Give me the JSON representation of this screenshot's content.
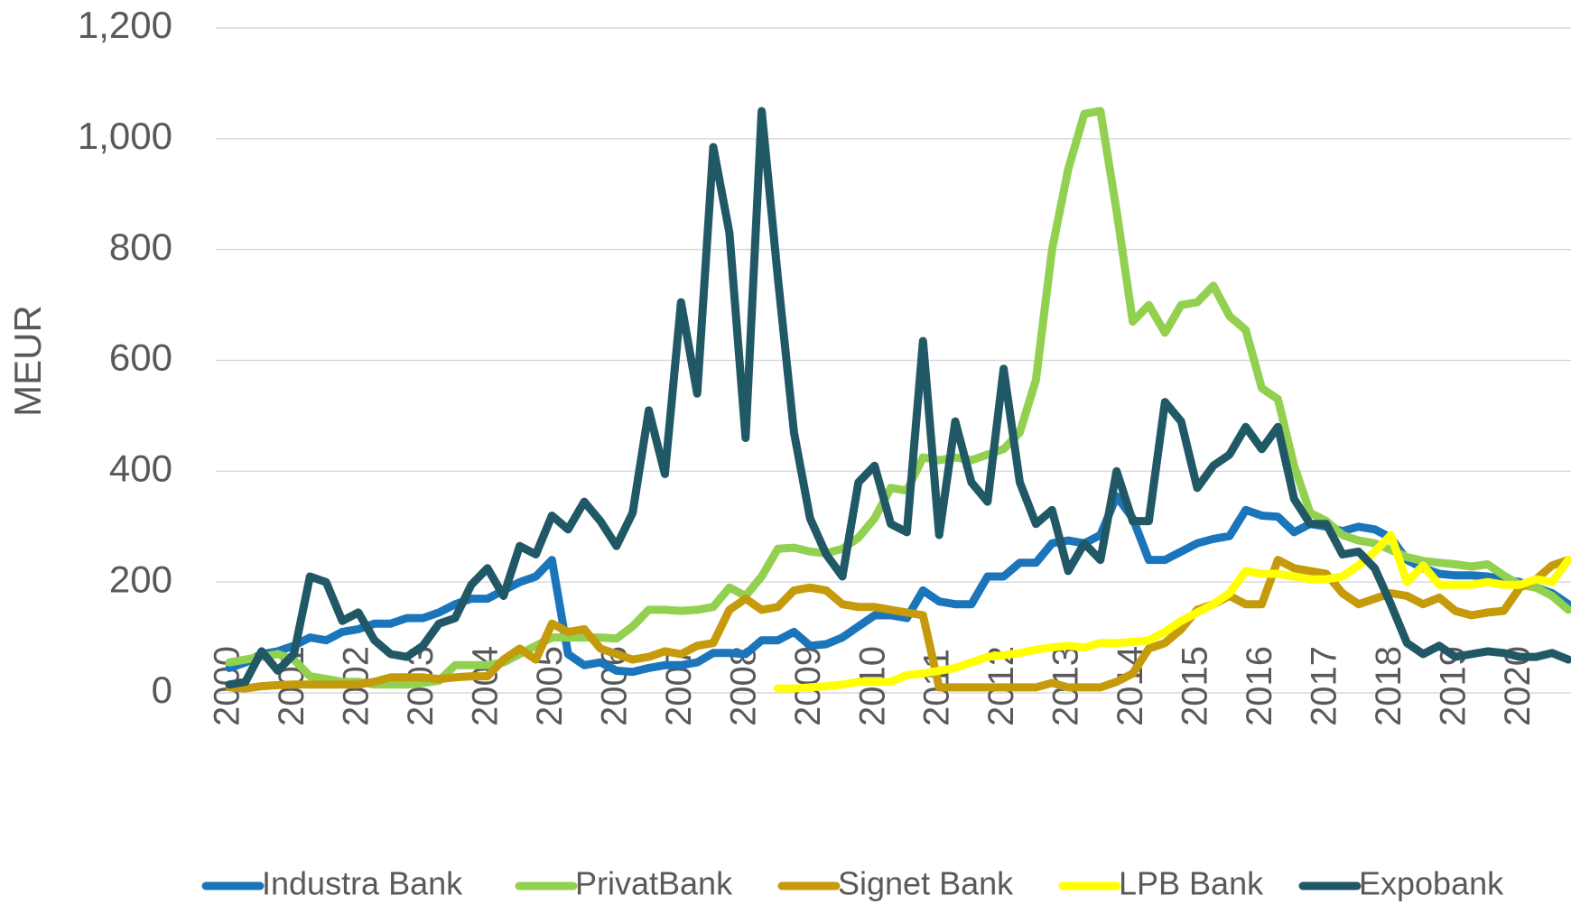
{
  "chart_data": {
    "type": "line",
    "y_label": "MEUR",
    "categories": [
      "2000",
      null,
      null,
      null,
      "2001",
      null,
      null,
      null,
      "2002",
      null,
      null,
      null,
      "2003",
      null,
      null,
      null,
      "2004",
      null,
      null,
      null,
      "2005",
      null,
      null,
      null,
      "2006",
      null,
      null,
      null,
      "2007",
      null,
      null,
      null,
      "2008",
      null,
      null,
      null,
      "2009",
      null,
      null,
      null,
      "2010",
      null,
      null,
      null,
      "2011",
      null,
      null,
      null,
      "2012",
      null,
      null,
      null,
      "2013",
      null,
      null,
      null,
      "2014",
      null,
      null,
      null,
      "2015",
      null,
      null,
      null,
      "2016",
      null,
      null,
      null,
      "2017",
      null,
      null,
      null,
      "2018",
      null,
      null,
      null,
      "2019",
      null,
      null,
      null,
      "2020",
      null,
      null,
      null
    ],
    "series": [
      {
        "name": "Industra Bank",
        "color": "#1b75bb",
        "values": [
          45,
          55,
          70,
          75,
          85,
          100,
          95,
          110,
          115,
          125,
          125,
          135,
          135,
          145,
          160,
          170,
          170,
          185,
          200,
          210,
          240,
          70,
          50,
          55,
          40,
          38,
          45,
          50,
          50,
          55,
          72,
          72,
          70,
          95,
          95,
          110,
          85,
          88,
          100,
          120,
          140,
          140,
          135,
          185,
          165,
          160,
          160,
          210,
          210,
          235,
          235,
          270,
          275,
          270,
          285,
          355,
          315,
          240,
          240,
          255,
          270,
          278,
          283,
          330,
          320,
          318,
          290,
          305,
          300,
          292,
          300,
          295,
          280,
          240,
          225,
          215,
          212,
          212,
          210,
          205,
          200,
          190,
          180,
          160
        ]
      },
      {
        "name": "PrivatBank",
        "color": "#92d050",
        "values": [
          55,
          60,
          65,
          70,
          60,
          30,
          25,
          20,
          20,
          15,
          15,
          15,
          18,
          22,
          50,
          50,
          50,
          55,
          70,
          85,
          100,
          100,
          100,
          100,
          98,
          120,
          150,
          150,
          148,
          150,
          155,
          190,
          175,
          210,
          260,
          262,
          255,
          252,
          260,
          280,
          315,
          370,
          365,
          425,
          420,
          425,
          420,
          430,
          440,
          470,
          565,
          800,
          945,
          1045,
          1050,
          870,
          670,
          700,
          650,
          700,
          705,
          735,
          680,
          655,
          550,
          530,
          410,
          325,
          310,
          285,
          275,
          270,
          258,
          245,
          238,
          235,
          232,
          228,
          232,
          212,
          195,
          190,
          175,
          150
        ]
      },
      {
        "name": "Signet Bank",
        "color": "#c59a0b",
        "values": [
          10,
          8,
          12,
          14,
          15,
          15,
          15,
          15,
          15,
          20,
          28,
          28,
          28,
          25,
          28,
          30,
          30,
          60,
          80,
          60,
          125,
          110,
          115,
          80,
          70,
          60,
          65,
          75,
          70,
          85,
          90,
          150,
          170,
          150,
          155,
          185,
          190,
          185,
          160,
          155,
          155,
          150,
          145,
          140,
          10,
          10,
          10,
          10,
          10,
          10,
          10,
          18,
          10,
          10,
          10,
          20,
          35,
          80,
          90,
          115,
          150,
          160,
          175,
          160,
          160,
          240,
          225,
          220,
          215,
          180,
          160,
          170,
          180,
          175,
          160,
          172,
          148,
          140,
          145,
          148,
          190,
          205,
          230,
          240
        ]
      },
      {
        "name": "LPB Bank",
        "color": "#ffff00",
        "values": [
          null,
          null,
          null,
          null,
          null,
          null,
          null,
          null,
          null,
          null,
          null,
          null,
          null,
          null,
          null,
          null,
          null,
          null,
          null,
          null,
          null,
          null,
          null,
          null,
          null,
          null,
          null,
          null,
          null,
          null,
          null,
          null,
          null,
          null,
          8,
          8,
          10,
          12,
          15,
          20,
          20,
          20,
          32,
          35,
          40,
          45,
          55,
          65,
          68,
          72,
          78,
          82,
          85,
          82,
          90,
          90,
          92,
          95,
          110,
          130,
          145,
          160,
          180,
          220,
          215,
          215,
          210,
          205,
          205,
          210,
          230,
          255,
          285,
          200,
          230,
          195,
          195,
          195,
          200,
          195,
          195,
          205,
          200,
          240
        ]
      },
      {
        "name": "Expobank",
        "color": "#215866",
        "values": [
          15,
          20,
          75,
          40,
          70,
          210,
          200,
          130,
          145,
          95,
          70,
          65,
          85,
          125,
          135,
          195,
          225,
          175,
          265,
          250,
          320,
          295,
          345,
          310,
          265,
          325,
          510,
          395,
          705,
          540,
          985,
          830,
          460,
          1050,
          750,
          470,
          315,
          250,
          210,
          380,
          410,
          305,
          290,
          635,
          285,
          490,
          380,
          345,
          585,
          380,
          305,
          330,
          220,
          270,
          240,
          400,
          310,
          310,
          525,
          490,
          370,
          410,
          430,
          480,
          440,
          480,
          350,
          305,
          305,
          250,
          255,
          225,
          160,
          90,
          70,
          85,
          65,
          70,
          75,
          72,
          65,
          65,
          72,
          60
        ]
      }
    ],
    "ylim": [
      0,
      1200
    ],
    "yticks": [
      0,
      200,
      400,
      600,
      800,
      {
        "value": 1000,
        "label": "1,000"
      },
      {
        "value": 1200,
        "label": "1,200"
      }
    ],
    "grid": true,
    "legend": "bottom"
  }
}
